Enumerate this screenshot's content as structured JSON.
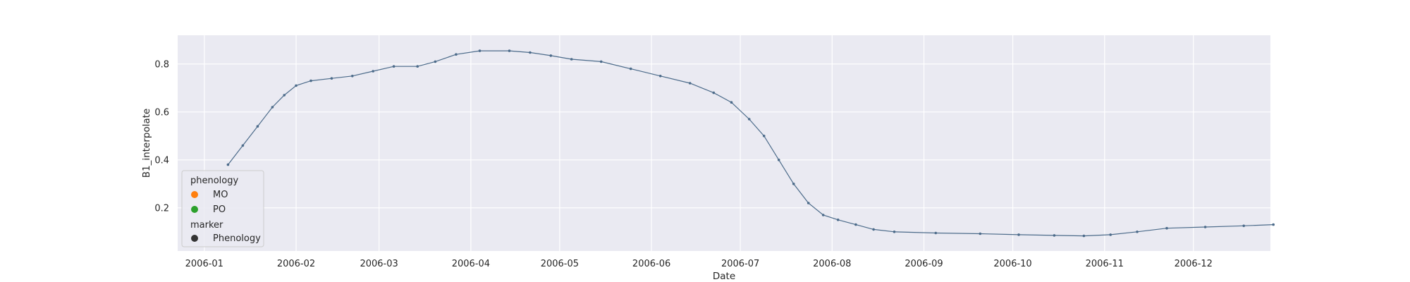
{
  "chart_data": {
    "type": "scatter",
    "xlabel": "Date",
    "ylabel": "B1_interpolate",
    "x_ticks": [
      "2006-01",
      "2006-02",
      "2006-03",
      "2006-04",
      "2006-05",
      "2006-06",
      "2006-07",
      "2006-08",
      "2006-09",
      "2006-10",
      "2006-11",
      "2006-12"
    ],
    "y_ticks": [
      "0.2",
      "0.4",
      "0.6",
      "0.8"
    ],
    "xlim": [
      "2005-12-23",
      "2006-12-27"
    ],
    "ylim": [
      0.02,
      0.92
    ],
    "grid": true,
    "background": "#eaeaf2",
    "legend": {
      "position": "lower-left",
      "title": "phenology",
      "items": [
        {
          "label": "MO",
          "color": "#ff7f0e"
        },
        {
          "label": "PO",
          "color": "#2ca02c"
        }
      ],
      "marker_title": "marker",
      "marker_items": [
        {
          "label": "Phenology",
          "color": "#333333"
        }
      ]
    },
    "series": [
      {
        "kind": "curve",
        "color": "#4c6b8a",
        "points": [
          [
            "2006-01-09",
            0.38
          ],
          [
            "2006-01-14",
            0.46
          ],
          [
            "2006-01-19",
            0.54
          ],
          [
            "2006-01-24",
            0.62
          ],
          [
            "2006-01-28",
            0.67
          ],
          [
            "2006-02-01",
            0.71
          ],
          [
            "2006-02-06",
            0.73
          ],
          [
            "2006-02-13",
            0.74
          ],
          [
            "2006-02-20",
            0.75
          ],
          [
            "2006-02-27",
            0.77
          ],
          [
            "2006-03-06",
            0.79
          ],
          [
            "2006-03-14",
            0.79
          ],
          [
            "2006-03-20",
            0.81
          ],
          [
            "2006-03-27",
            0.84
          ],
          [
            "2006-04-04",
            0.855
          ],
          [
            "2006-04-14",
            0.855
          ],
          [
            "2006-04-21",
            0.848
          ],
          [
            "2006-04-28",
            0.835
          ],
          [
            "2006-05-05",
            0.82
          ],
          [
            "2006-05-15",
            0.81
          ],
          [
            "2006-05-25",
            0.78
          ],
          [
            "2006-06-04",
            0.75
          ],
          [
            "2006-06-14",
            0.72
          ],
          [
            "2006-06-22",
            0.68
          ],
          [
            "2006-06-28",
            0.64
          ],
          [
            "2006-07-04",
            0.57
          ],
          [
            "2006-07-09",
            0.5
          ],
          [
            "2006-07-14",
            0.4
          ],
          [
            "2006-07-19",
            0.3
          ],
          [
            "2006-07-24",
            0.22
          ],
          [
            "2006-07-29",
            0.17
          ],
          [
            "2006-08-03",
            0.15
          ],
          [
            "2006-08-09",
            0.13
          ],
          [
            "2006-08-15",
            0.11
          ],
          [
            "2006-08-22",
            0.1
          ],
          [
            "2006-09-05",
            0.095
          ],
          [
            "2006-09-20",
            0.092
          ],
          [
            "2006-10-03",
            0.088
          ],
          [
            "2006-10-15",
            0.085
          ],
          [
            "2006-10-25",
            0.083
          ],
          [
            "2006-11-03",
            0.088
          ],
          [
            "2006-11-12",
            0.1
          ],
          [
            "2006-11-22",
            0.115
          ],
          [
            "2006-12-05",
            0.12
          ],
          [
            "2006-12-18",
            0.125
          ],
          [
            "2006-12-28",
            0.13
          ]
        ]
      }
    ]
  }
}
